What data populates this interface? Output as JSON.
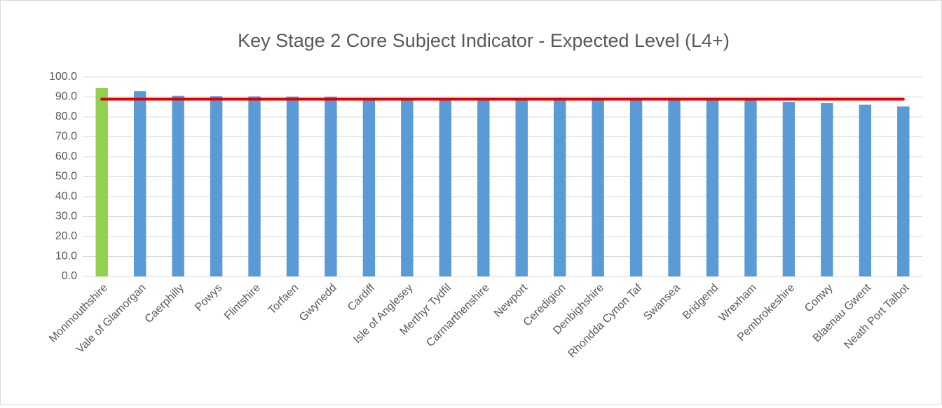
{
  "chart_data": {
    "type": "bar",
    "title": "Key Stage 2 Core Subject Indicator - Expected Level (L4+)",
    "categories": [
      "Monmouthshire",
      "Vale of Glamorgan",
      "Caerphilly",
      "Powys",
      "Flintshire",
      "Torfaen",
      "Gwynedd",
      "Cardiff",
      "Isle of Anglesey",
      "Merthyr Tydfil",
      "Carmarthenshire",
      "Newport",
      "Ceredigion",
      "Denbighshire",
      "Rhondda Cynon Taf",
      "Swansea",
      "Bridgend",
      "Wrexham",
      "Pembrokeshire",
      "Conwy",
      "Blaenau Gwent",
      "Neath Port Talbot"
    ],
    "series": [
      {
        "type": "bar",
        "values": [
          94.4,
          92.9,
          90.6,
          90.4,
          90.3,
          90.2,
          90.1,
          89.4,
          89.2,
          89.1,
          89.0,
          89.0,
          88.9,
          88.9,
          88.8,
          88.8,
          88.7,
          88.6,
          87.4,
          87.0,
          86.1,
          85.2
        ],
        "colors": [
          "#92d050",
          "#5b9bd5",
          "#5b9bd5",
          "#5b9bd5",
          "#5b9bd5",
          "#5b9bd5",
          "#5b9bd5",
          "#5b9bd5",
          "#5b9bd5",
          "#5b9bd5",
          "#5b9bd5",
          "#5b9bd5",
          "#5b9bd5",
          "#5b9bd5",
          "#5b9bd5",
          "#5b9bd5",
          "#5b9bd5",
          "#5b9bd5",
          "#5b9bd5",
          "#5b9bd5",
          "#5b9bd5",
          "#5b9bd5"
        ]
      },
      {
        "type": "line",
        "color": "#e00000",
        "values": [
          88.9,
          88.9,
          88.9,
          88.9,
          88.9,
          88.9,
          88.9,
          88.9,
          88.9,
          88.9,
          88.9,
          88.9,
          88.9,
          88.9,
          88.9,
          88.9,
          88.9,
          88.9,
          88.9,
          88.9,
          88.9,
          88.9
        ]
      }
    ],
    "ylim": [
      0,
      100
    ],
    "yticks": [
      {
        "value": 0,
        "label": "0.0"
      },
      {
        "value": 10,
        "label": "10.0"
      },
      {
        "value": 20,
        "label": "20.0"
      },
      {
        "value": 30,
        "label": "30.0"
      },
      {
        "value": 40,
        "label": "40.0"
      },
      {
        "value": 50,
        "label": "50.0"
      },
      {
        "value": 60,
        "label": "60.0"
      },
      {
        "value": 70,
        "label": "70.0"
      },
      {
        "value": 80,
        "label": "80.0"
      },
      {
        "value": 90,
        "label": "90.0"
      },
      {
        "value": 100,
        "label": "100.0"
      }
    ],
    "grid": true
  }
}
